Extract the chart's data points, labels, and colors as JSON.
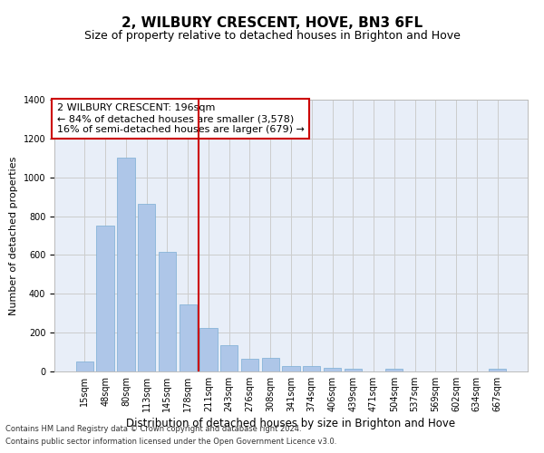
{
  "title": "2, WILBURY CRESCENT, HOVE, BN3 6FL",
  "subtitle": "Size of property relative to detached houses in Brighton and Hove",
  "xlabel": "Distribution of detached houses by size in Brighton and Hove",
  "ylabel": "Number of detached properties",
  "footnote1": "Contains HM Land Registry data © Crown copyright and database right 2024.",
  "footnote2": "Contains public sector information licensed under the Open Government Licence v3.0.",
  "annotation_line1": "2 WILBURY CRESCENT: 196sqm",
  "annotation_line2": "← 84% of detached houses are smaller (3,578)",
  "annotation_line3": "16% of semi-detached houses are larger (679) →",
  "bar_labels": [
    "15sqm",
    "48sqm",
    "80sqm",
    "113sqm",
    "145sqm",
    "178sqm",
    "211sqm",
    "243sqm",
    "276sqm",
    "308sqm",
    "341sqm",
    "374sqm",
    "406sqm",
    "439sqm",
    "471sqm",
    "504sqm",
    "537sqm",
    "569sqm",
    "602sqm",
    "634sqm",
    "667sqm"
  ],
  "bar_values": [
    50,
    750,
    1100,
    865,
    615,
    345,
    225,
    135,
    65,
    70,
    30,
    30,
    20,
    15,
    0,
    12,
    0,
    0,
    0,
    0,
    12
  ],
  "bar_color": "#aec6e8",
  "bar_edge_color": "#7aadd4",
  "vline_color": "#cc0000",
  "vline_x": 5.5,
  "ylim": [
    0,
    1400
  ],
  "yticks": [
    0,
    200,
    400,
    600,
    800,
    1000,
    1200,
    1400
  ],
  "grid_color": "#cccccc",
  "bg_color": "#e8eef8",
  "box_color": "#cc0000",
  "title_fontsize": 11,
  "subtitle_fontsize": 9,
  "ylabel_fontsize": 8,
  "xlabel_fontsize": 8.5,
  "tick_fontsize": 7,
  "annotation_fontsize": 8,
  "footnote_fontsize": 6
}
